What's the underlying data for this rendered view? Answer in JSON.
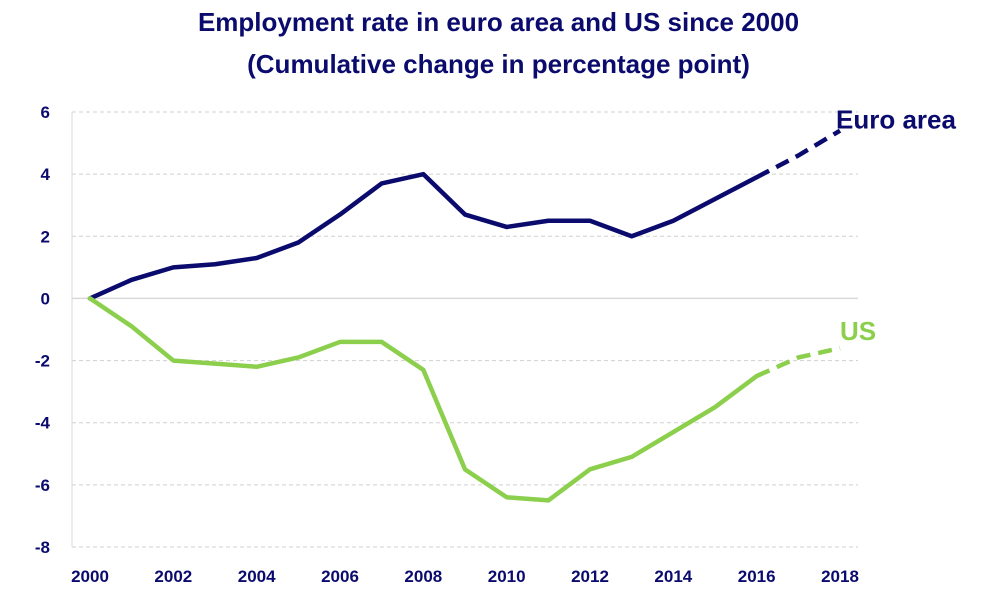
{
  "chart_data": {
    "type": "line",
    "title": "Employment rate in euro area and US since 2000",
    "subtitle": "(Cumulative change in percentage point)",
    "xlabel": "",
    "ylabel": "",
    "x": [
      2000,
      2001,
      2002,
      2003,
      2004,
      2005,
      2006,
      2007,
      2008,
      2009,
      2010,
      2011,
      2012,
      2013,
      2014,
      2015,
      2016,
      2017,
      2018
    ],
    "x_ticks": [
      2000,
      2002,
      2004,
      2006,
      2008,
      2010,
      2012,
      2014,
      2016,
      2018
    ],
    "y_ticks": [
      6,
      4,
      2,
      0,
      -2,
      -4,
      -6,
      -8
    ],
    "xlim": [
      2000,
      2018
    ],
    "ylim": [
      -8,
      6
    ],
    "grid": "horizontal dashed",
    "forecast_from": 2016,
    "series": [
      {
        "name": "Euro area",
        "color": "#0b0b6e",
        "values": [
          0,
          0.6,
          1.0,
          1.1,
          1.3,
          1.8,
          2.7,
          3.7,
          4.0,
          2.7,
          2.3,
          2.5,
          2.5,
          2.0,
          2.5,
          3.2,
          3.9,
          4.6,
          5.4
        ]
      },
      {
        "name": "US",
        "color": "#8ccf4d",
        "values": [
          0,
          -0.9,
          -2.0,
          -2.1,
          -2.2,
          -1.9,
          -1.4,
          -1.4,
          -2.3,
          -5.5,
          -6.4,
          -6.5,
          -5.5,
          -5.1,
          -4.3,
          -3.5,
          -2.5,
          -1.9,
          -1.6
        ]
      }
    ]
  }
}
